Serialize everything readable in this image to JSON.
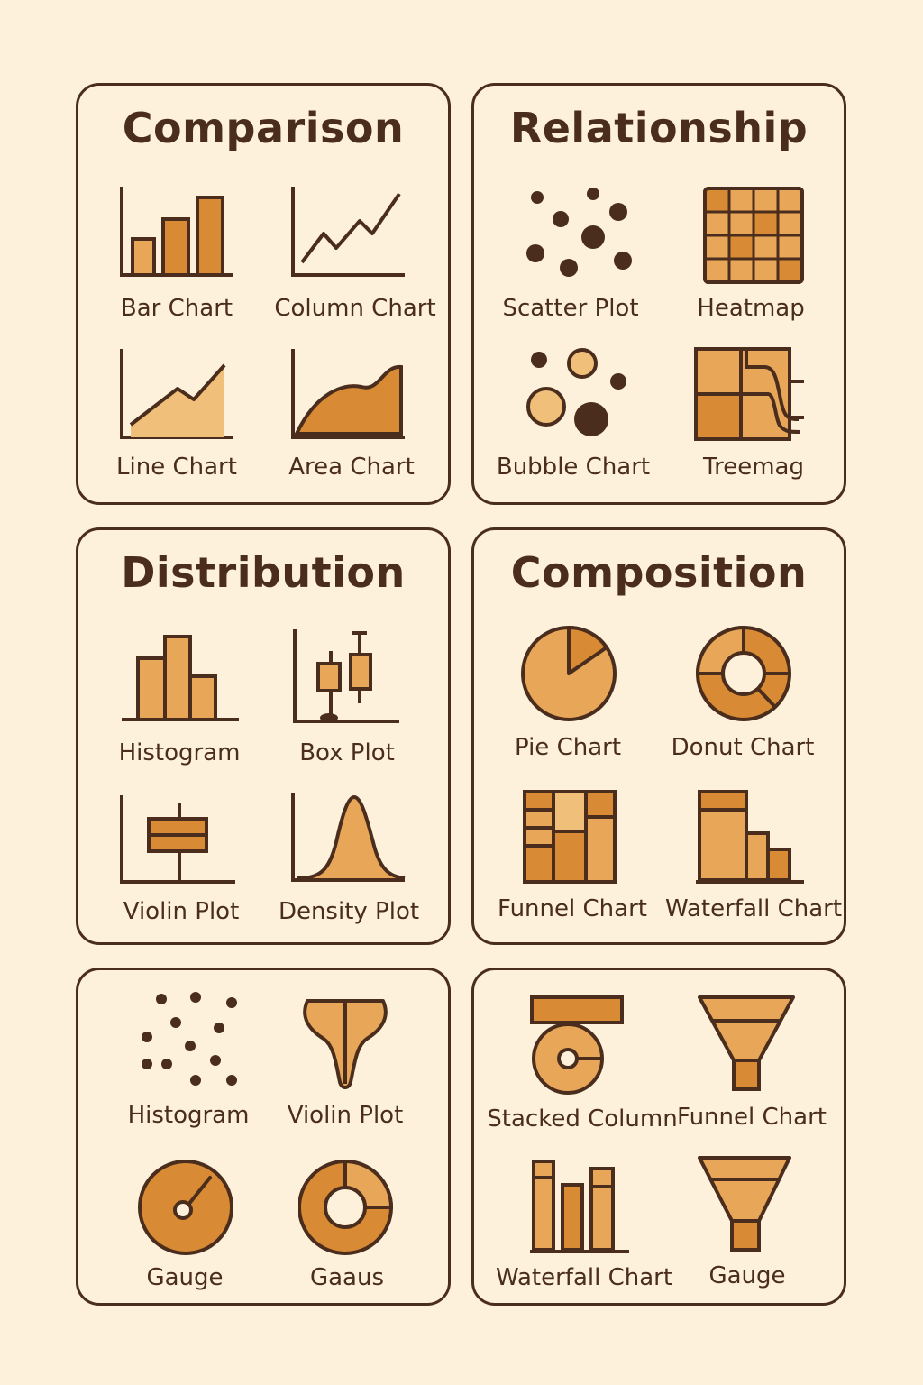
{
  "colors": {
    "background": "#fdf1dc",
    "stroke": "#4a2d1c",
    "fill_light": "#e8a659",
    "fill_dark": "#d98a34",
    "fill_pale": "#f0bf7a"
  },
  "panels": [
    {
      "title": "Comparison",
      "items": [
        {
          "label": "Bar Chart",
          "icon": "bar-chart-icon"
        },
        {
          "label": "Column Chart",
          "icon": "line-chart-icon"
        },
        {
          "label": "Line Chart",
          "icon": "area-line-chart-icon"
        },
        {
          "label": "Area Chart",
          "icon": "area-chart-icon"
        }
      ]
    },
    {
      "title": "Relationship",
      "items": [
        {
          "label": "Scatter Plot",
          "icon": "scatter-plot-icon"
        },
        {
          "label": "Heatmap",
          "icon": "heatmap-icon"
        },
        {
          "label": "Bubble Chart",
          "icon": "bubble-chart-icon"
        },
        {
          "label": "Treemag",
          "icon": "treemap-icon"
        }
      ]
    },
    {
      "title": "Distribution",
      "items": [
        {
          "label": "Histogram",
          "icon": "histogram-icon"
        },
        {
          "label": "Box Plot",
          "icon": "box-plot-icon"
        },
        {
          "label": "Violin Plot",
          "icon": "violin-plot-icon"
        },
        {
          "label": "Density Plot",
          "icon": "density-plot-icon"
        }
      ]
    },
    {
      "title": "Composition",
      "items": [
        {
          "label": "Pie Chart",
          "icon": "pie-chart-icon"
        },
        {
          "label": "Donut Chart",
          "icon": "donut-chart-icon"
        },
        {
          "label": "Funnel Chart",
          "icon": "grid-chart-icon"
        },
        {
          "label": "Waterfall Chart",
          "icon": "waterfall-chart-icon"
        }
      ]
    },
    {
      "title": "",
      "items": [
        {
          "label": "Histogram",
          "icon": "dot-cloud-icon"
        },
        {
          "label": "Violin Plot",
          "icon": "violin-shape-icon"
        },
        {
          "label": "Gauge",
          "icon": "gauge-icon"
        },
        {
          "label": "Gaaus",
          "icon": "ring-gauge-icon"
        }
      ]
    },
    {
      "title": "",
      "items": [
        {
          "label": "Stacked Column",
          "icon": "stacked-column-icon"
        },
        {
          "label": "Funnel Chart",
          "icon": "funnel-icon"
        },
        {
          "label": "Waterfall Chart",
          "icon": "waterfall-bars-icon"
        },
        {
          "label": "Gauge",
          "icon": "funnel-gauge-icon"
        }
      ]
    }
  ]
}
